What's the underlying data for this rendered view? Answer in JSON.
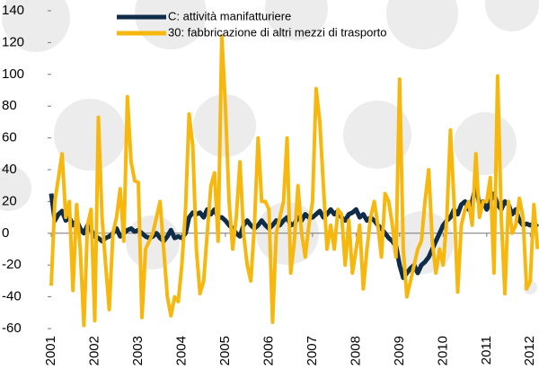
{
  "chart_data": {
    "type": "line",
    "categories": [
      "2001",
      null,
      null,
      null,
      null,
      null,
      null,
      null,
      null,
      null,
      null,
      null,
      "2002",
      null,
      null,
      null,
      null,
      null,
      null,
      null,
      null,
      null,
      null,
      null,
      "2003",
      null,
      null,
      null,
      null,
      null,
      null,
      null,
      null,
      null,
      null,
      null,
      "2004",
      null,
      null,
      null,
      null,
      null,
      null,
      null,
      null,
      null,
      null,
      null,
      "2005",
      null,
      null,
      null,
      null,
      null,
      null,
      null,
      null,
      null,
      null,
      null,
      "2006",
      null,
      null,
      null,
      null,
      null,
      null,
      null,
      null,
      null,
      null,
      null,
      "2007",
      null,
      null,
      null,
      null,
      null,
      null,
      null,
      null,
      null,
      null,
      null,
      "2008",
      null,
      null,
      null,
      null,
      null,
      null,
      null,
      null,
      null,
      null,
      null,
      "2009",
      null,
      null,
      null,
      null,
      null,
      null,
      null,
      null,
      null,
      null,
      null,
      "2010",
      null,
      null,
      null,
      null,
      null,
      null,
      null,
      null,
      null,
      null,
      null,
      "2011",
      null,
      null,
      null,
      null,
      null,
      null,
      null,
      null,
      null,
      null,
      null,
      "2012",
      null,
      null
    ],
    "series": [
      {
        "name": "C: attività manifatturiere",
        "color": "#0f2c48",
        "values": [
          25,
          8,
          12,
          14,
          8,
          10,
          5,
          8,
          3,
          0,
          5,
          2,
          -2,
          -3,
          -5,
          -3,
          -2,
          0,
          3,
          -2,
          0,
          2,
          3,
          1,
          2,
          0,
          -2,
          -3,
          -2,
          0,
          -3,
          -5,
          -2,
          2,
          -3,
          -2,
          -3,
          0,
          10,
          13,
          12,
          13,
          10,
          15,
          12,
          15,
          10,
          10,
          8,
          5,
          3,
          0,
          -2,
          5,
          8,
          5,
          3,
          5,
          8,
          5,
          3,
          5,
          8,
          5,
          8,
          10,
          5,
          6,
          10,
          8,
          12,
          10,
          10,
          12,
          14,
          10,
          12,
          15,
          12,
          14,
          10,
          8,
          12,
          13,
          15,
          10,
          12,
          8,
          10,
          8,
          5,
          3,
          0,
          -3,
          -5,
          -8,
          -20,
          -28,
          -25,
          -22,
          -20,
          -25,
          -20,
          -18,
          -15,
          -10,
          -5,
          0,
          5,
          8,
          10,
          15,
          12,
          18,
          20,
          15,
          20,
          30,
          18,
          20,
          15,
          20,
          25,
          18,
          15,
          20,
          18,
          12,
          15,
          8,
          5,
          6,
          5,
          6,
          4
        ]
      },
      {
        "name": "30: fabbricazione di altri mezzi di trasporto",
        "color": "#f6b80f",
        "values": [
          -33,
          20,
          35,
          50,
          10,
          20,
          -36,
          18,
          -10,
          -58,
          5,
          15,
          -55,
          73,
          10,
          -20,
          -48,
          0,
          10,
          28,
          -5,
          86,
          45,
          33,
          32,
          -53,
          -10,
          -5,
          0,
          10,
          20,
          -10,
          -40,
          -52,
          -40,
          -43,
          -20,
          15,
          75,
          55,
          -10,
          -38,
          -30,
          0,
          30,
          38,
          -5,
          124,
          80,
          20,
          -10,
          10,
          45,
          0,
          -20,
          -30,
          5,
          60,
          20,
          20,
          15,
          -56,
          0,
          10,
          20,
          60,
          -25,
          -5,
          30,
          0,
          -15,
          5,
          20,
          91,
          70,
          30,
          -10,
          5,
          -10,
          15,
          12,
          -20,
          8,
          -25,
          -10,
          5,
          -35,
          -10,
          10,
          20,
          5,
          -15,
          25,
          20,
          5,
          -15,
          97,
          -10,
          -40,
          -30,
          -20,
          -10,
          -5,
          20,
          40,
          -5,
          -25,
          -10,
          -20,
          10,
          65,
          20,
          -37,
          5,
          15,
          20,
          5,
          50,
          10,
          20,
          20,
          35,
          -25,
          99,
          10,
          -38,
          20,
          0,
          5,
          22,
          10,
          -35,
          -30,
          18,
          -10
        ]
      }
    ],
    "ylim": [
      -60,
      140
    ],
    "yticks": [
      -60,
      -40,
      -20,
      0,
      20,
      40,
      60,
      80,
      100,
      120,
      140
    ]
  }
}
